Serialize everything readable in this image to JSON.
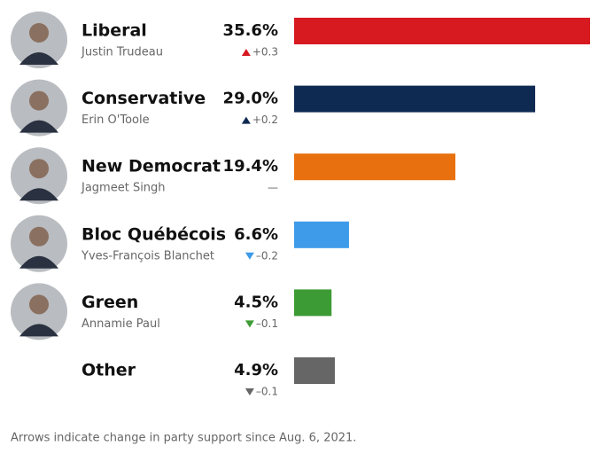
{
  "chart_data": {
    "type": "bar",
    "categories": [
      "Liberal",
      "Conservative",
      "New Democrat",
      "Bloc Québécois",
      "Green",
      "Other"
    ],
    "leaders": [
      "Justin Trudeau",
      "Erin O'Toole",
      "Jagmeet Singh",
      "Yves-François Blanchet",
      "Annamie Paul",
      null
    ],
    "values": [
      35.6,
      29.0,
      19.4,
      6.6,
      4.5,
      4.9
    ],
    "value_labels": [
      "35.6%",
      "29.0%",
      "19.4%",
      "6.6%",
      "4.5%",
      "4.9%"
    ],
    "colors": [
      "#d71920",
      "#0f2a52",
      "#e8700e",
      "#3d9be9",
      "#3d9b35",
      "#666666"
    ],
    "changes": [
      {
        "value": 0.3,
        "label": "+0.3"
      },
      {
        "value": 0.2,
        "label": "+0.2"
      },
      {
        "value": 0,
        "label": "—"
      },
      {
        "value": -0.2,
        "label": "–0.2"
      },
      {
        "value": -0.1,
        "label": "–0.1"
      },
      {
        "value": -0.1,
        "label": "–0.1"
      }
    ],
    "note": "Arrows indicate change in party support since Aug. 6, 2021."
  }
}
